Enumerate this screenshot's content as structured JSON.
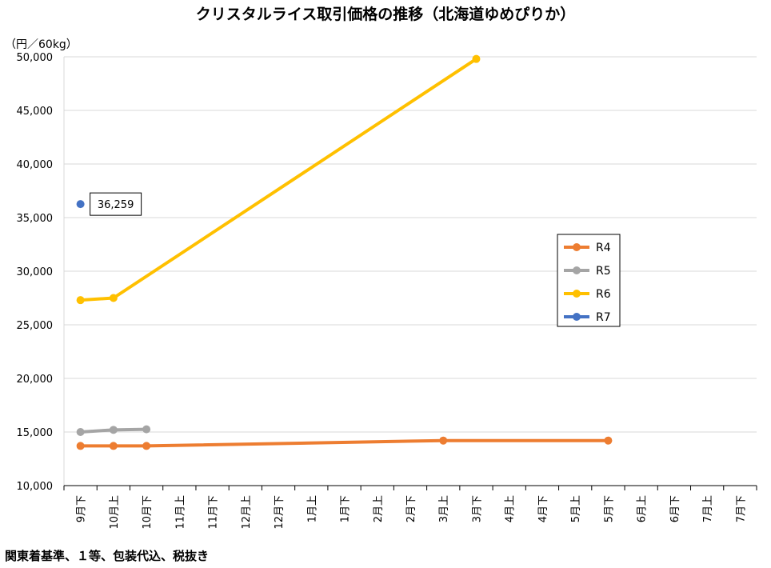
{
  "chart_data": {
    "type": "line",
    "title": "クリスタルライス取引価格の推移（北海道ゆめぴりか）",
    "ylabel": "（円／60kg）",
    "ylim": [
      10000,
      50000
    ],
    "yticks": [
      "10,000",
      "15,000",
      "20,000",
      "25,000",
      "30,000",
      "35,000",
      "40,000",
      "45,000",
      "50,000"
    ],
    "categories": [
      "9月下",
      "10月上",
      "10月下",
      "11月上",
      "11月下",
      "12月上",
      "12月下",
      "1月上",
      "1月下",
      "2月上",
      "2月下",
      "3月上",
      "3月下",
      "4月上",
      "4月下",
      "5月上",
      "5月下",
      "6月上",
      "6月下",
      "7月上",
      "7月下"
    ],
    "grid": true,
    "legend_position": "right",
    "series": [
      {
        "name": "R4",
        "color": "#ED7D31",
        "values": [
          13700,
          13700,
          13700,
          null,
          null,
          null,
          null,
          null,
          null,
          null,
          null,
          14200,
          null,
          null,
          null,
          null,
          14200,
          null,
          null,
          null,
          null
        ]
      },
      {
        "name": "R5",
        "color": "#A5A5A5",
        "values": [
          15000,
          15200,
          15250,
          null,
          null,
          null,
          null,
          null,
          null,
          null,
          null,
          null,
          null,
          null,
          null,
          null,
          null,
          null,
          null,
          null,
          null
        ]
      },
      {
        "name": "R6",
        "color": "#FFC000",
        "values": [
          27300,
          27500,
          null,
          null,
          null,
          null,
          null,
          null,
          null,
          null,
          null,
          null,
          49800,
          null,
          null,
          null,
          null,
          null,
          null,
          null,
          null
        ]
      },
      {
        "name": "R7",
        "color": "#4472C4",
        "values": [
          36259,
          null,
          null,
          null,
          null,
          null,
          null,
          null,
          null,
          null,
          null,
          null,
          null,
          null,
          null,
          null,
          null,
          null,
          null,
          null,
          null
        ]
      }
    ],
    "annotations": [
      {
        "series": "R7",
        "index": 0,
        "text": "36,259"
      }
    ]
  },
  "footnote": "関東着基準、１等、包装代込、税抜き"
}
